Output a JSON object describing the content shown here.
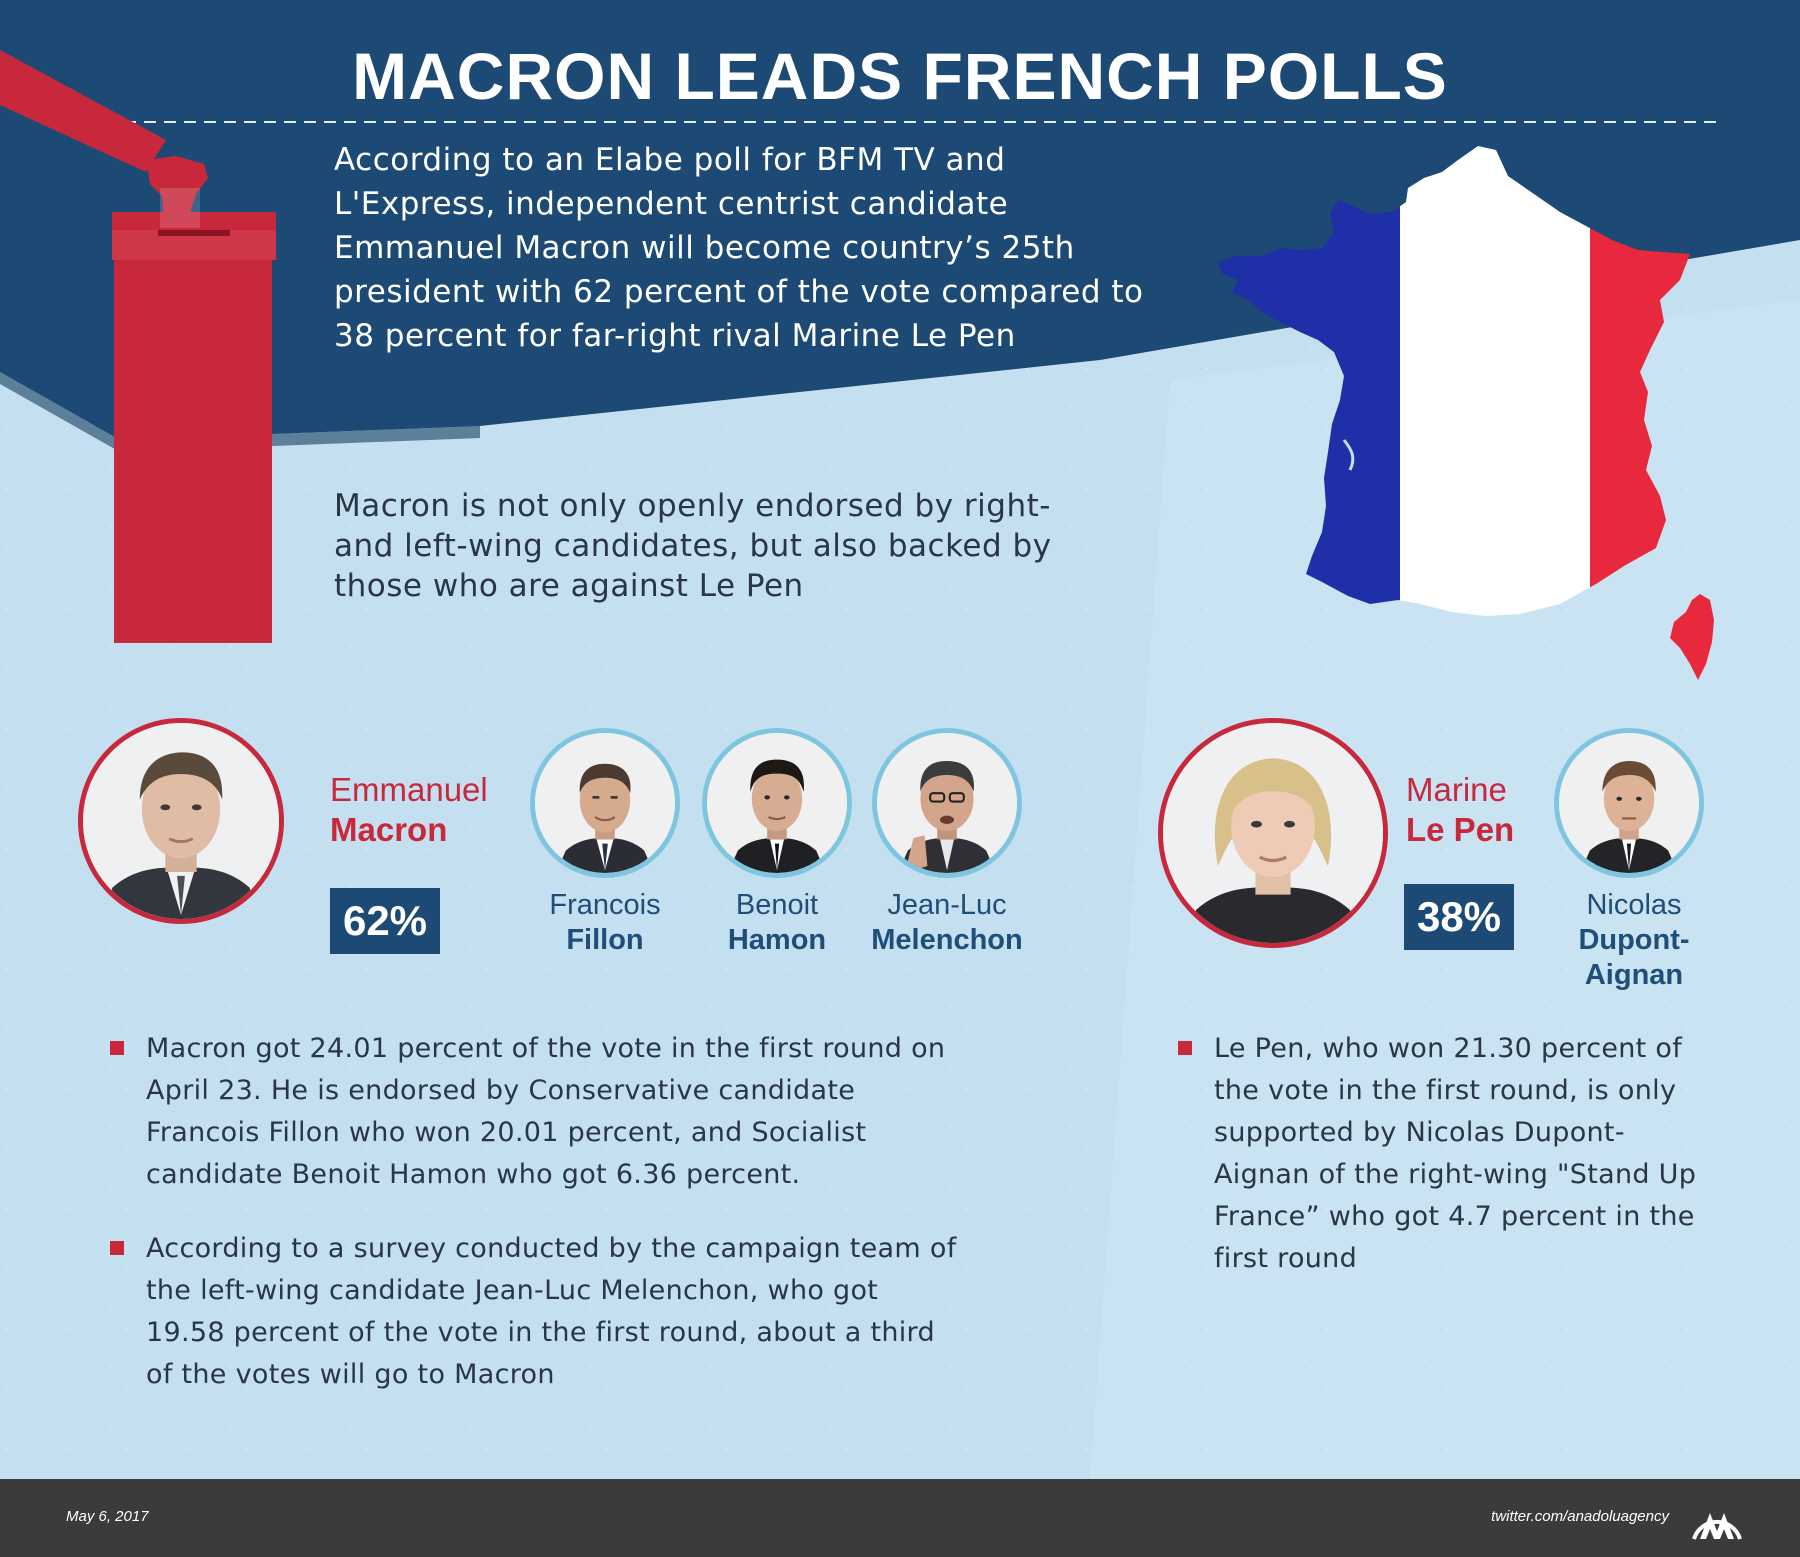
{
  "title": "MACRON LEADS FRENCH POLLS",
  "intro": "According to an Elabe poll for BFM TV and L'Express, independent centrist candidate Emmanuel Macron will become country’s 25th president with 62 percent of the vote compared to 38 percent for far-right rival Marine Le Pen",
  "endorsement": "Macron is not only openly endorsed by right- and left-wing candidates, but also backed by those who are against Le Pen",
  "candidates": {
    "macron": {
      "first": "Emmanuel",
      "last": "Macron",
      "percent": "62%"
    },
    "fillon": {
      "first": "Francois",
      "last": "Fillon"
    },
    "hamon": {
      "first": "Benoit",
      "last": "Hamon"
    },
    "melenchon": {
      "first": "Jean-Luc",
      "last": "Melenchon"
    },
    "lepen": {
      "first": "Marine",
      "last": "Le Pen",
      "percent": "38%"
    },
    "dupont": {
      "first": "Nicolas",
      "last": "Dupont-Aignan"
    }
  },
  "bullets_left": [
    "Macron got 24.01 percent of the vote in the first round on April 23. He is endorsed by Conservative candidate Francois Fillon who won 20.01 percent, and Socialist candidate Benoit Hamon who got 6.36 percent.",
    "According to a survey conducted by the campaign team of the left-wing candidate Jean-Luc Melenchon, who got 19.58 percent of the vote in the first round, about a third of the votes will go to Macron"
  ],
  "bullets_right": [
    "Le Pen, who won 21.30 percent of the vote in the first round, is only supported by Nicolas Dupont-Aignan of the right-wing \"Stand Up France” who got 4.7 percent in the first round"
  ],
  "footer": {
    "date": "May 6, 2017",
    "twitter": "twitter.com/anadoluagency"
  },
  "colors": {
    "navy": "#1d4a74",
    "red": "#c8283c",
    "light_blue": "#c4e0f0",
    "ring_blue": "#7ec6e0",
    "flag_blue": "#1f2fa8",
    "footer": "#3b3b3b"
  }
}
